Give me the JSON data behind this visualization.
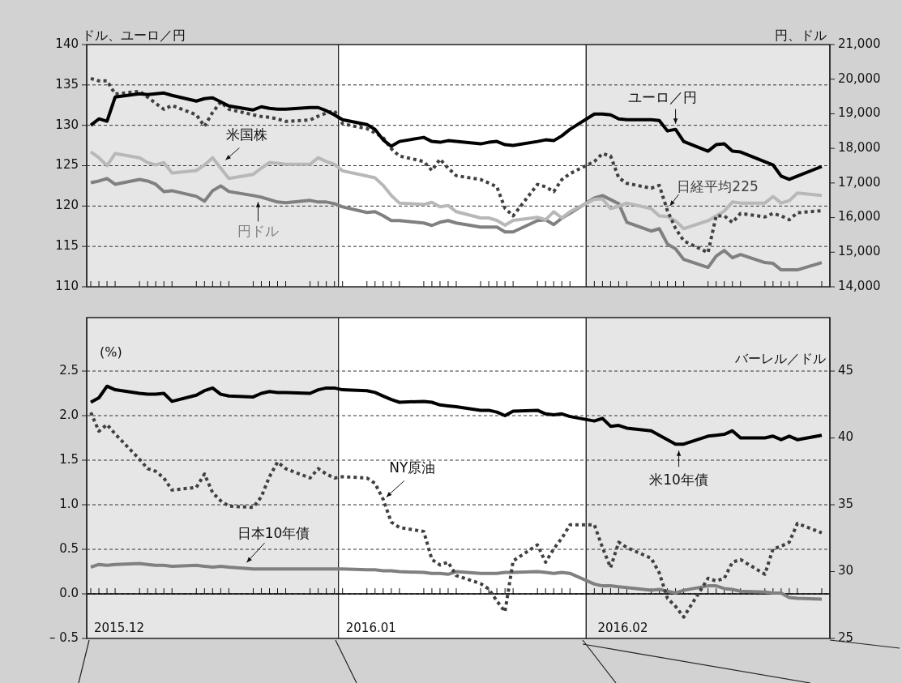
{
  "chart_data": [
    {
      "type": "line",
      "ylabel": "ドル、ユーロ／円",
      "y2label": "円、ドル",
      "grid": "y",
      "tick_labels": "y",
      "x": [
        "2015-12-01",
        "2015-12-02",
        "2015-12-03",
        "2015-12-04",
        "2015-12-07",
        "2015-12-08",
        "2015-12-09",
        "2015-12-10",
        "2015-12-11",
        "2015-12-14",
        "2015-12-15",
        "2015-12-16",
        "2015-12-17",
        "2015-12-18",
        "2015-12-21",
        "2015-12-22",
        "2015-12-23",
        "2015-12-24",
        "2015-12-25",
        "2015-12-28",
        "2015-12-29",
        "2015-12-30",
        "2015-12-31",
        "2016-01-01",
        "2016-01-04",
        "2016-01-05",
        "2016-01-06",
        "2016-01-07",
        "2016-01-08",
        "2016-01-11",
        "2016-01-12",
        "2016-01-13",
        "2016-01-14",
        "2016-01-15",
        "2016-01-18",
        "2016-01-19",
        "2016-01-20",
        "2016-01-21",
        "2016-01-22",
        "2016-01-25",
        "2016-01-26",
        "2016-01-27",
        "2016-01-28",
        "2016-01-29",
        "2016-02-01",
        "2016-02-02",
        "2016-02-03",
        "2016-02-04",
        "2016-02-05",
        "2016-02-08",
        "2016-02-09",
        "2016-02-10",
        "2016-02-11",
        "2016-02-12",
        "2016-02-15",
        "2016-02-16",
        "2016-02-17",
        "2016-02-18",
        "2016-02-19",
        "2016-02-22",
        "2016-02-23",
        "2016-02-24",
        "2016-02-25",
        "2016-02-26",
        "2016-02-29"
      ],
      "xlim": [
        "2015-11-30T12:00",
        "2016-03-01"
      ],
      "xticks": [
        {
          "value": "2015-12-01",
          "label": null
        },
        {
          "value": "2015-12-02",
          "label": null
        },
        {
          "value": "2015-12-03",
          "label": null
        },
        {
          "value": "2015-12-04",
          "label": null
        },
        {
          "value": "2015-12-07",
          "label": null
        },
        {
          "value": "2015-12-08",
          "label": null
        },
        {
          "value": "2015-12-09",
          "label": null
        },
        {
          "value": "2015-12-10",
          "label": null
        },
        {
          "value": "2015-12-11",
          "label": null
        },
        {
          "value": "2015-12-14",
          "label": null
        },
        {
          "value": "2015-12-15",
          "label": null
        },
        {
          "value": "2015-12-16",
          "label": null
        },
        {
          "value": "2015-12-17",
          "label": null
        },
        {
          "value": "2015-12-18",
          "label": null
        },
        {
          "value": "2015-12-21",
          "label": null
        },
        {
          "value": "2015-12-22",
          "label": null
        },
        {
          "value": "2015-12-23",
          "label": null
        },
        {
          "value": "2015-12-24",
          "label": null
        },
        {
          "value": "2015-12-25",
          "label": null
        },
        {
          "value": "2015-12-28",
          "label": null
        },
        {
          "value": "2015-12-29",
          "label": null
        },
        {
          "value": "2015-12-30",
          "label": null
        },
        {
          "value": "2015-12-31",
          "label": null
        },
        {
          "value": "2016-01-01",
          "label": null
        },
        {
          "value": "2016-01-04",
          "label": null
        },
        {
          "value": "2016-01-05",
          "label": null
        },
        {
          "value": "2016-01-06",
          "label": null
        },
        {
          "value": "2016-01-07",
          "label": null
        },
        {
          "value": "2016-01-08",
          "label": null
        },
        {
          "value": "2016-01-11",
          "label": null
        },
        {
          "value": "2016-01-12",
          "label": null
        },
        {
          "value": "2016-01-13",
          "label": null
        },
        {
          "value": "2016-01-14",
          "label": null
        },
        {
          "value": "2016-01-15",
          "label": null
        },
        {
          "value": "2016-01-18",
          "label": null
        },
        {
          "value": "2016-01-19",
          "label": null
        },
        {
          "value": "2016-01-20",
          "label": null
        },
        {
          "value": "2016-01-21",
          "label": null
        },
        {
          "value": "2016-01-22",
          "label": null
        },
        {
          "value": "2016-01-25",
          "label": null
        },
        {
          "value": "2016-01-26",
          "label": null
        },
        {
          "value": "2016-01-27",
          "label": null
        },
        {
          "value": "2016-01-28",
          "label": null
        },
        {
          "value": "2016-01-29",
          "label": null
        },
        {
          "value": "2016-02-01",
          "label": null
        },
        {
          "value": "2016-02-02",
          "label": null
        },
        {
          "value": "2016-02-03",
          "label": null
        },
        {
          "value": "2016-02-04",
          "label": null
        },
        {
          "value": "2016-02-05",
          "label": null
        },
        {
          "value": "2016-02-08",
          "label": null
        },
        {
          "value": "2016-02-09",
          "label": null
        },
        {
          "value": "2016-02-10",
          "label": null
        },
        {
          "value": "2016-02-11",
          "label": null
        },
        {
          "value": "2016-02-12",
          "label": null
        },
        {
          "value": "2016-02-15",
          "label": null
        },
        {
          "value": "2016-02-16",
          "label": null
        },
        {
          "value": "2016-02-17",
          "label": null
        },
        {
          "value": "2016-02-18",
          "label": null
        },
        {
          "value": "2016-02-19",
          "label": null
        },
        {
          "value": "2016-02-22",
          "label": null
        },
        {
          "value": "2016-02-23",
          "label": null
        },
        {
          "value": "2016-02-24",
          "label": null
        },
        {
          "value": "2016-02-25",
          "label": null
        },
        {
          "value": "2016-02-26",
          "label": null
        },
        {
          "value": "2016-02-29",
          "label": null
        }
      ],
      "ylim": [
        110,
        140
      ],
      "yticks": [
        110,
        115,
        120,
        125,
        130,
        135,
        140
      ],
      "y2lim": [
        14000,
        21000
      ],
      "y2ticks": [
        {
          "value": 14000,
          "label": "14,000"
        },
        {
          "value": 15000,
          "label": "15,000"
        },
        {
          "value": 16000,
          "label": "16,000"
        },
        {
          "value": 17000,
          "label": "17,000"
        },
        {
          "value": 18000,
          "label": "18,000"
        },
        {
          "value": 19000,
          "label": "19,000"
        },
        {
          "value": 20000,
          "label": "20,000"
        },
        {
          "value": 21000,
          "label": "21,000"
        }
      ],
      "bands": [
        {
          "axis": "x",
          "from": "2015-11-30T12:00",
          "to": "2015-12-31T12:00",
          "color": "#e6e6e6"
        },
        {
          "axis": "x",
          "from": "2015-12-31T12:00",
          "to": "2016-01-31",
          "color": "#ffffff"
        },
        {
          "axis": "x",
          "from": "2016-01-31",
          "to": "2016-03-01",
          "color": "#e6e6e6"
        }
      ],
      "series": [
        {
          "name": "ユーロ／円",
          "color": "#000000",
          "line_style": "solid",
          "values": [
            130.0,
            130.8,
            130.5,
            133.5,
            133.9,
            133.8,
            133.9,
            134.0,
            133.7,
            133.0,
            133.3,
            133.4,
            132.9,
            132.4,
            131.9,
            132.3,
            132.1,
            132.0,
            132.0,
            132.2,
            132.2,
            131.8,
            131.3,
            130.7,
            130.1,
            129.5,
            128.2,
            127.4,
            128.0,
            128.5,
            128.0,
            127.9,
            128.1,
            128.0,
            127.7,
            127.9,
            128.0,
            127.6,
            127.5,
            128.0,
            128.2,
            128.1,
            128.7,
            129.5,
            131.4,
            131.4,
            131.3,
            130.8,
            130.7,
            130.7,
            130.6,
            129.3,
            129.5,
            128.0,
            126.8,
            127.6,
            127.7,
            126.8,
            126.7,
            125.5,
            125.1,
            123.7,
            123.3,
            123.7,
            124.9
          ]
        },
        {
          "name": "日経平均225",
          "color": "#404040",
          "line_style": "dotted",
          "axis": "y2",
          "values": [
            20020,
            19950,
            19950,
            19570,
            19650,
            19480,
            19300,
            19130,
            19240,
            18970,
            18640,
            19040,
            19340,
            19130,
            18970,
            18920,
            18900,
            18850,
            18780,
            18820,
            18930,
            19020,
            19090,
            18710,
            18570,
            18450,
            18310,
            17990,
            17780,
            17620,
            17360,
            17690,
            17430,
            17210,
            17100,
            17000,
            16890,
            16270,
            16050,
            16960,
            16890,
            16750,
            17100,
            17270,
            17620,
            17850,
            17780,
            17150,
            16990,
            16850,
            16930,
            16200,
            15690,
            15330,
            14990,
            16050,
            16050,
            15860,
            16120,
            16020,
            16120,
            16050,
            15940,
            16140,
            16200
          ]
        },
        {
          "name": "米国株",
          "color": "#b8b8b8",
          "line_style": "solid",
          "axis": "y2",
          "values": [
            17900,
            17730,
            17500,
            17850,
            17730,
            17590,
            17520,
            17590,
            17290,
            17360,
            17520,
            17730,
            17430,
            17130,
            17250,
            17430,
            17590,
            17570,
            17540,
            17540,
            17730,
            17620,
            17540,
            17350,
            17200,
            17150,
            16930,
            16640,
            16420,
            16380,
            16440,
            16310,
            16350,
            16170,
            15990,
            15990,
            15920,
            15780,
            15920,
            16010,
            15940,
            16170,
            15990,
            16170,
            16530,
            16540,
            16260,
            16330,
            16420,
            16260,
            16050,
            16030,
            15910,
            15680,
            15910,
            16050,
            16190,
            16450,
            16420,
            16420,
            16610,
            16420,
            16490,
            16710,
            16640
          ]
        },
        {
          "name": "円ドル",
          "color": "#808080",
          "line_style": "solid",
          "values": [
            122.9,
            123.1,
            123.4,
            122.7,
            123.3,
            123.1,
            122.7,
            121.8,
            121.9,
            121.2,
            120.6,
            121.9,
            122.5,
            121.8,
            121.3,
            121.1,
            120.8,
            120.5,
            120.4,
            120.7,
            120.5,
            120.5,
            120.3,
            119.9,
            119.2,
            119.3,
            118.8,
            118.2,
            118.2,
            117.9,
            117.6,
            118.0,
            118.2,
            117.9,
            117.4,
            117.4,
            117.4,
            116.8,
            116.8,
            118.2,
            118.3,
            117.7,
            118.5,
            119.1,
            121.0,
            121.3,
            120.8,
            120.3,
            118.0,
            116.9,
            117.2,
            115.3,
            114.7,
            113.4,
            112.4,
            113.8,
            114.5,
            113.6,
            114.0,
            113.0,
            112.9,
            112.1,
            112.1,
            112.1,
            113.0
          ]
        }
      ]
    },
    {
      "type": "line",
      "ylabel": "(%)",
      "y2label": "バーレル／ドル",
      "grid": "y",
      "x": [
        "2015-12-01",
        "2015-12-02",
        "2015-12-03",
        "2015-12-04",
        "2015-12-07",
        "2015-12-08",
        "2015-12-09",
        "2015-12-10",
        "2015-12-11",
        "2015-12-14",
        "2015-12-15",
        "2015-12-16",
        "2015-12-17",
        "2015-12-18",
        "2015-12-21",
        "2015-12-22",
        "2015-12-23",
        "2015-12-24",
        "2015-12-25",
        "2015-12-28",
        "2015-12-29",
        "2015-12-30",
        "2015-12-31",
        "2016-01-01",
        "2016-01-04",
        "2016-01-05",
        "2016-01-06",
        "2016-01-07",
        "2016-01-08",
        "2016-01-11",
        "2016-01-12",
        "2016-01-13",
        "2016-01-14",
        "2016-01-15",
        "2016-01-18",
        "2016-01-19",
        "2016-01-20",
        "2016-01-21",
        "2016-01-22",
        "2016-01-25",
        "2016-01-26",
        "2016-01-27",
        "2016-01-28",
        "2016-01-29",
        "2016-02-01",
        "2016-02-02",
        "2016-02-03",
        "2016-02-04",
        "2016-02-05",
        "2016-02-08",
        "2016-02-09",
        "2016-02-10",
        "2016-02-11",
        "2016-02-12",
        "2016-02-15",
        "2016-02-16",
        "2016-02-17",
        "2016-02-18",
        "2016-02-19",
        "2016-02-22",
        "2016-02-23",
        "2016-02-24",
        "2016-02-25",
        "2016-02-26",
        "2016-02-29"
      ],
      "xlim": [
        "2015-11-30T12:00",
        "2016-03-01"
      ],
      "xticks": [
        {
          "value": "2015-12-04T12:00",
          "label": "2015.12"
        },
        {
          "value": "2016-01-04T12:00",
          "label": "2016.01"
        },
        {
          "value": "2016-02-04T12:00",
          "label": "2016.02"
        },
        {
          "value": "2015-12-01",
          "label": null
        },
        {
          "value": "2015-12-02",
          "label": null
        },
        {
          "value": "2015-12-03",
          "label": null
        },
        {
          "value": "2015-12-04",
          "label": null
        },
        {
          "value": "2015-12-07",
          "label": null
        },
        {
          "value": "2015-12-08",
          "label": null
        },
        {
          "value": "2015-12-09",
          "label": null
        },
        {
          "value": "2015-12-10",
          "label": null
        },
        {
          "value": "2015-12-11",
          "label": null
        },
        {
          "value": "2015-12-14",
          "label": null
        },
        {
          "value": "2015-12-15",
          "label": null
        },
        {
          "value": "2015-12-16",
          "label": null
        },
        {
          "value": "2015-12-17",
          "label": null
        },
        {
          "value": "2015-12-18",
          "label": null
        },
        {
          "value": "2015-12-21",
          "label": null
        },
        {
          "value": "2015-12-22",
          "label": null
        },
        {
          "value": "2015-12-23",
          "label": null
        },
        {
          "value": "2015-12-24",
          "label": null
        },
        {
          "value": "2015-12-25",
          "label": null
        },
        {
          "value": "2015-12-28",
          "label": null
        },
        {
          "value": "2015-12-29",
          "label": null
        },
        {
          "value": "2015-12-30",
          "label": null
        },
        {
          "value": "2015-12-31",
          "label": null
        },
        {
          "value": "2016-01-01",
          "label": null
        },
        {
          "value": "2016-01-04",
          "label": null
        },
        {
          "value": "2016-01-05",
          "label": null
        },
        {
          "value": "2016-01-06",
          "label": null
        },
        {
          "value": "2016-01-07",
          "label": null
        },
        {
          "value": "2016-01-08",
          "label": null
        },
        {
          "value": "2016-01-11",
          "label": null
        },
        {
          "value": "2016-01-12",
          "label": null
        },
        {
          "value": "2016-01-13",
          "label": null
        },
        {
          "value": "2016-01-14",
          "label": null
        },
        {
          "value": "2016-01-15",
          "label": null
        },
        {
          "value": "2016-01-18",
          "label": null
        },
        {
          "value": "2016-01-19",
          "label": null
        },
        {
          "value": "2016-01-20",
          "label": null
        },
        {
          "value": "2016-01-21",
          "label": null
        },
        {
          "value": "2016-01-22",
          "label": null
        },
        {
          "value": "2016-01-25",
          "label": null
        },
        {
          "value": "2016-01-26",
          "label": null
        },
        {
          "value": "2016-01-27",
          "label": null
        },
        {
          "value": "2016-01-28",
          "label": null
        },
        {
          "value": "2016-01-29",
          "label": null
        },
        {
          "value": "2016-02-01",
          "label": null
        },
        {
          "value": "2016-02-02",
          "label": null
        },
        {
          "value": "2016-02-03",
          "label": null
        },
        {
          "value": "2016-02-04",
          "label": null
        },
        {
          "value": "2016-02-05",
          "label": null
        },
        {
          "value": "2016-02-08",
          "label": null
        },
        {
          "value": "2016-02-09",
          "label": null
        },
        {
          "value": "2016-02-10",
          "label": null
        },
        {
          "value": "2016-02-11",
          "label": null
        },
        {
          "value": "2016-02-12",
          "label": null
        },
        {
          "value": "2016-02-15",
          "label": null
        },
        {
          "value": "2016-02-16",
          "label": null
        },
        {
          "value": "2016-02-17",
          "label": null
        },
        {
          "value": "2016-02-18",
          "label": null
        },
        {
          "value": "2016-02-19",
          "label": null
        },
        {
          "value": "2016-02-22",
          "label": null
        },
        {
          "value": "2016-02-23",
          "label": null
        },
        {
          "value": "2016-02-24",
          "label": null
        },
        {
          "value": "2016-02-25",
          "label": null
        },
        {
          "value": "2016-02-26",
          "label": null
        },
        {
          "value": "2016-02-29",
          "label": null
        }
      ],
      "ylim": [
        -0.5,
        3.1
      ],
      "yticks": [
        {
          "value": -0.5,
          "label": "– 0.5"
        },
        {
          "value": 0,
          "label": "0.0"
        },
        {
          "value": 0.5,
          "label": "0.5"
        },
        {
          "value": 1,
          "label": "1.0"
        },
        {
          "value": 1.5,
          "label": "1.5"
        },
        {
          "value": 2,
          "label": "2.0"
        },
        {
          "value": 2.5,
          "label": "2.5"
        }
      ],
      "y2lim": [
        25,
        49
      ],
      "y2ticks": [
        25,
        30,
        35,
        40,
        45
      ],
      "ref_lines": [
        {
          "axis": "y",
          "value": 0,
          "color": "#000000"
        }
      ],
      "bands": [
        {
          "axis": "x",
          "from": "2015-11-30T12:00",
          "to": "2015-12-31T12:00",
          "color": "#e6e6e6"
        },
        {
          "axis": "x",
          "from": "2015-12-31T12:00",
          "to": "2016-01-31",
          "color": "#ffffff"
        },
        {
          "axis": "x",
          "from": "2016-01-31",
          "to": "2016-03-01",
          "color": "#e6e6e6"
        }
      ],
      "series": [
        {
          "name": "米10年債",
          "color": "#000000",
          "line_style": "solid",
          "values": [
            2.15,
            2.2,
            2.33,
            2.29,
            2.25,
            2.24,
            2.24,
            2.25,
            2.16,
            2.23,
            2.28,
            2.31,
            2.24,
            2.22,
            2.21,
            2.25,
            2.27,
            2.26,
            2.26,
            2.25,
            2.29,
            2.31,
            2.31,
            2.29,
            2.28,
            2.26,
            2.22,
            2.18,
            2.15,
            2.16,
            2.15,
            2.12,
            2.11,
            2.1,
            2.06,
            2.06,
            2.04,
            2.0,
            2.05,
            2.06,
            2.02,
            2.01,
            2.02,
            1.99,
            1.94,
            1.97,
            1.88,
            1.89,
            1.86,
            1.83,
            1.78,
            1.73,
            1.68,
            1.68,
            1.77,
            1.78,
            1.79,
            1.83,
            1.75,
            1.75,
            1.77,
            1.73,
            1.77,
            1.73,
            1.78
          ]
        },
        {
          "name": "NY原油",
          "color": "#404040",
          "line_style": "dotted",
          "axis": "y2",
          "values": [
            41.9,
            40.5,
            41.0,
            40.3,
            38.4,
            37.7,
            37.5,
            37.0,
            36.1,
            36.3,
            37.3,
            35.9,
            35.3,
            34.9,
            34.8,
            35.6,
            37.1,
            38.2,
            37.7,
            37.0,
            37.7,
            37.3,
            37.0,
            37.1,
            37.0,
            36.6,
            35.4,
            33.7,
            33.3,
            33.0,
            30.9,
            30.5,
            30.7,
            29.7,
            29.1,
            28.7,
            27.8,
            27.0,
            30.8,
            32.0,
            30.7,
            31.7,
            32.5,
            33.5,
            33.5,
            31.8,
            30.3,
            32.2,
            31.8,
            31.0,
            29.9,
            28.0,
            27.4,
            26.6,
            29.5,
            29.3,
            29.5,
            30.7,
            30.9,
            29.8,
            31.7,
            31.9,
            32.2,
            33.6,
            32.9
          ]
        },
        {
          "name": "日本10年債",
          "color": "#808080",
          "line_style": "solid",
          "values": [
            0.3,
            0.33,
            0.32,
            0.33,
            0.34,
            0.33,
            0.32,
            0.32,
            0.31,
            0.32,
            0.31,
            0.3,
            0.31,
            0.3,
            0.28,
            0.28,
            0.28,
            0.28,
            0.28,
            0.28,
            0.28,
            0.28,
            0.28,
            0.28,
            0.27,
            0.27,
            0.26,
            0.26,
            0.25,
            0.24,
            0.23,
            0.23,
            0.22,
            0.25,
            0.23,
            0.23,
            0.23,
            0.24,
            0.24,
            0.25,
            0.24,
            0.23,
            0.24,
            0.23,
            0.11,
            0.09,
            0.09,
            0.08,
            0.07,
            0.04,
            0.05,
            0.03,
            0.01,
            0.04,
            0.09,
            0.09,
            0.06,
            0.05,
            0.03,
            0.02,
            0.01,
            0.01,
            -0.04,
            -0.05,
            -0.06
          ]
        }
      ]
    }
  ]
}
